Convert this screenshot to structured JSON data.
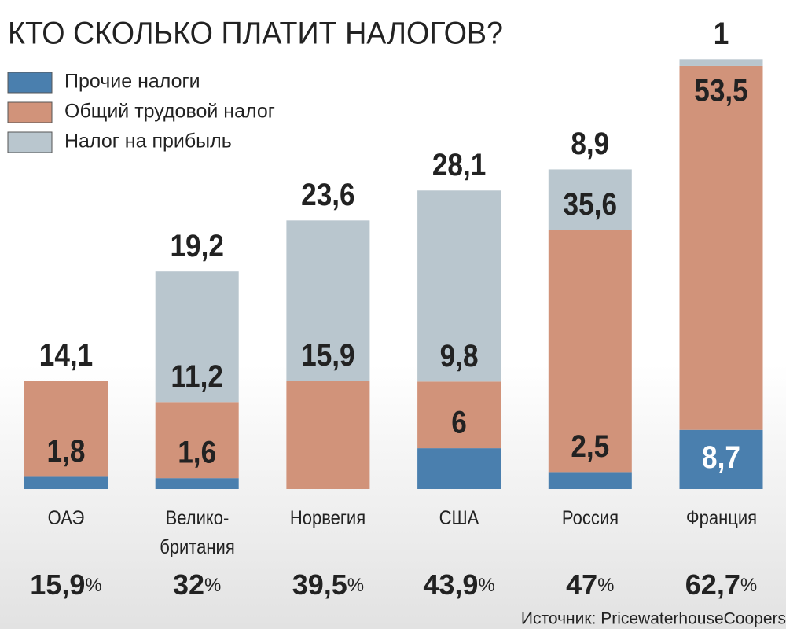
{
  "chart_data": {
    "type": "stacked_bar",
    "title": "КТО СКОЛЬКО ПЛАТИТ НАЛОГОВ?",
    "categories": [
      "ОАЭ",
      "Велико-\nбритания",
      "Норвегия",
      "США",
      "Россия",
      "Франция"
    ],
    "series": [
      {
        "name": "Прочие налоги",
        "color": "#4a7fae",
        "values": [
          1.8,
          1.6,
          0,
          6,
          2.5,
          8.7
        ],
        "value_labels": [
          "1,8",
          "1,6",
          null,
          "6",
          "2,5",
          "8,7"
        ]
      },
      {
        "name": "Общий трудовой налог",
        "color": "#d1937a",
        "values": [
          14.1,
          11.2,
          15.9,
          9.8,
          35.6,
          53.5
        ],
        "value_labels": [
          "14,1",
          "11,2",
          "15,9",
          "9,8",
          "35,6",
          "53,5"
        ]
      },
      {
        "name": "Налог на прибыль",
        "color": "#b9c6ce",
        "values": [
          0,
          19.2,
          23.6,
          28.1,
          8.9,
          1
        ],
        "value_labels": [
          null,
          "19,2",
          "23,6",
          "28,1",
          "8,9",
          "1"
        ]
      }
    ],
    "totals": {
      "values": [
        15.9,
        32,
        39.5,
        43.9,
        47,
        62.7
      ],
      "value_labels": [
        "15,9%",
        "32%",
        "39,5%",
        "43,9%",
        "47%",
        "62,7%"
      ]
    },
    "source": "Источник: PricewaterhouseCoopers"
  }
}
